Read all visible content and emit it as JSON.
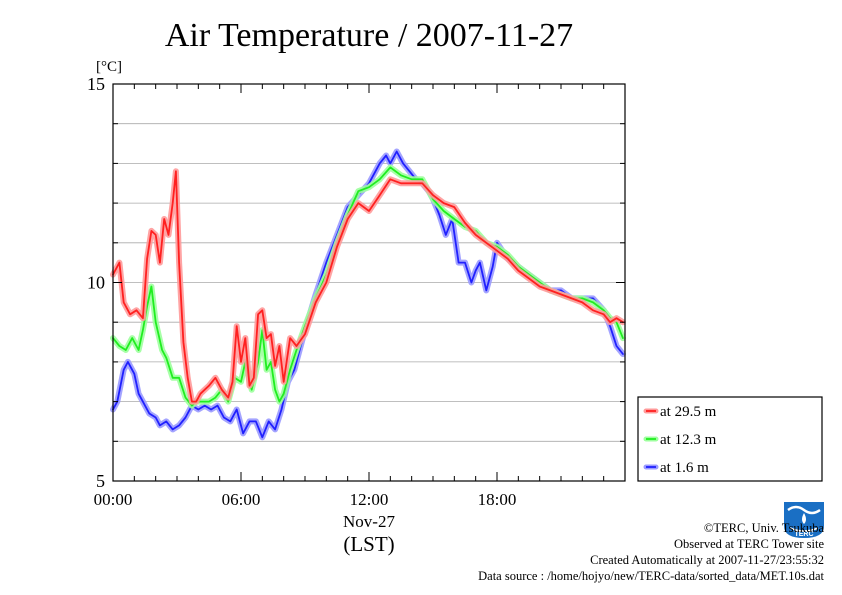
{
  "chart_data": {
    "type": "line",
    "title": "Air Temperature / 2007-11-27",
    "ylabel": "[°C]",
    "xlabel": "(LST)",
    "x_date_label": "Nov-27",
    "xlim": [
      0,
      24
    ],
    "ylim": [
      5,
      15
    ],
    "grid": true,
    "legend_position": "right-bottom-outside",
    "x_ticks": [
      {
        "x": 0,
        "label": "00:00"
      },
      {
        "x": 6,
        "label": "06:00"
      },
      {
        "x": 12,
        "label": "12:00"
      },
      {
        "x": 18,
        "label": "18:00"
      }
    ],
    "y_ticks": [
      {
        "y": 5,
        "label": "5"
      },
      {
        "y": 10,
        "label": "10"
      },
      {
        "y": 15,
        "label": "15"
      }
    ],
    "series": [
      {
        "name": "at 29.5 m",
        "color": "#ff2020",
        "glow": "#ff9a9a",
        "x": [
          0,
          0.3,
          0.5,
          0.8,
          1.1,
          1.4,
          1.6,
          1.8,
          2.0,
          2.2,
          2.4,
          2.6,
          2.8,
          2.95,
          3.1,
          3.3,
          3.5,
          3.7,
          3.9,
          4.1,
          4.3,
          4.5,
          4.8,
          5.1,
          5.4,
          5.6,
          5.8,
          6.0,
          6.2,
          6.4,
          6.6,
          6.8,
          7.0,
          7.2,
          7.4,
          7.6,
          7.8,
          8.0,
          8.3,
          8.6,
          9.0,
          9.5,
          10.0,
          10.5,
          11.0,
          11.5,
          12.0,
          12.5,
          13.0,
          13.5,
          14.0,
          14.5,
          15.0,
          15.5,
          16.0,
          16.5,
          17.0,
          17.5,
          18.0,
          18.5,
          19.0,
          19.5,
          20.0,
          20.5,
          21.0,
          21.5,
          22.0,
          22.5,
          23.0,
          23.3,
          23.6,
          23.9
        ],
        "values": [
          10.2,
          10.5,
          9.5,
          9.2,
          9.3,
          9.1,
          10.6,
          11.3,
          11.2,
          10.5,
          11.6,
          11.2,
          12.0,
          12.8,
          10.5,
          8.5,
          7.6,
          7.0,
          7.0,
          7.2,
          7.3,
          7.4,
          7.6,
          7.3,
          7.1,
          7.5,
          8.9,
          8.0,
          8.6,
          7.4,
          7.6,
          9.2,
          9.3,
          8.6,
          8.7,
          7.9,
          8.4,
          7.5,
          8.6,
          8.4,
          8.7,
          9.5,
          10.0,
          10.9,
          11.6,
          12.0,
          11.8,
          12.2,
          12.6,
          12.5,
          12.5,
          12.5,
          12.2,
          12.0,
          11.9,
          11.5,
          11.2,
          11.0,
          10.8,
          10.6,
          10.3,
          10.1,
          9.9,
          9.8,
          9.7,
          9.6,
          9.5,
          9.3,
          9.2,
          9.0,
          9.1,
          9.0
        ]
      },
      {
        "name": "at 12.3 m",
        "color": "#20ee20",
        "glow": "#9dff9d",
        "x": [
          0,
          0.3,
          0.6,
          0.9,
          1.2,
          1.4,
          1.6,
          1.8,
          2.0,
          2.3,
          2.5,
          2.8,
          3.1,
          3.4,
          3.7,
          3.9,
          4.2,
          4.5,
          4.8,
          5.1,
          5.4,
          5.7,
          6.0,
          6.2,
          6.5,
          6.8,
          7.0,
          7.2,
          7.4,
          7.6,
          7.8,
          8.0,
          8.3,
          8.6,
          9.0,
          9.5,
          10.0,
          10.5,
          11.0,
          11.5,
          12.0,
          12.5,
          13.0,
          13.5,
          14.0,
          14.5,
          15.0,
          15.5,
          16.0,
          16.5,
          17.0,
          17.5,
          18.0,
          18.5,
          19.0,
          19.5,
          20.0,
          20.5,
          21.0,
          21.5,
          22.0,
          22.5,
          23.0,
          23.3,
          23.6,
          23.9
        ],
        "values": [
          8.6,
          8.4,
          8.3,
          8.6,
          8.3,
          8.8,
          9.4,
          9.9,
          9.0,
          8.3,
          8.1,
          7.6,
          7.6,
          7.1,
          6.9,
          7.0,
          7.0,
          7.0,
          7.1,
          7.3,
          7.0,
          7.6,
          7.5,
          8.0,
          7.3,
          8.0,
          8.8,
          7.8,
          8.0,
          7.3,
          7.0,
          7.2,
          7.8,
          8.3,
          8.9,
          9.6,
          10.2,
          11.0,
          11.7,
          12.3,
          12.4,
          12.6,
          12.9,
          12.7,
          12.6,
          12.6,
          12.1,
          11.8,
          11.6,
          11.4,
          11.3,
          11.0,
          10.9,
          10.7,
          10.4,
          10.2,
          10.0,
          9.8,
          9.7,
          9.6,
          9.6,
          9.5,
          9.3,
          9.1,
          9.0,
          8.6
        ]
      },
      {
        "name": "at 1.6 m",
        "color": "#2020ff",
        "glow": "#9a9aff",
        "x": [
          0,
          0.2,
          0.5,
          0.7,
          1.0,
          1.2,
          1.5,
          1.7,
          2.0,
          2.2,
          2.5,
          2.8,
          3.1,
          3.4,
          3.7,
          4.0,
          4.3,
          4.6,
          4.9,
          5.2,
          5.5,
          5.8,
          6.1,
          6.4,
          6.7,
          7.0,
          7.3,
          7.6,
          7.9,
          8.2,
          8.5,
          9.0,
          9.5,
          10.0,
          10.5,
          11.0,
          11.5,
          12.0,
          12.5,
          12.8,
          13.0,
          13.3,
          13.6,
          13.9,
          14.2,
          14.5,
          14.8,
          15.0,
          15.3,
          15.6,
          15.9,
          16.2,
          16.5,
          16.8,
          17.0,
          17.2,
          17.5,
          17.8,
          18.0,
          18.5,
          19.0,
          19.5,
          20.0,
          20.5,
          21.0,
          21.5,
          22.0,
          22.5,
          23.0,
          23.3,
          23.6,
          23.9
        ],
        "values": [
          6.8,
          7.0,
          7.8,
          8.0,
          7.7,
          7.2,
          6.9,
          6.7,
          6.6,
          6.4,
          6.5,
          6.3,
          6.4,
          6.6,
          6.9,
          6.8,
          6.9,
          6.8,
          6.9,
          6.6,
          6.5,
          6.8,
          6.2,
          6.5,
          6.5,
          6.1,
          6.5,
          6.3,
          6.8,
          7.5,
          7.8,
          8.8,
          9.7,
          10.5,
          11.2,
          11.9,
          12.2,
          12.5,
          13.0,
          13.2,
          13.0,
          13.3,
          13.0,
          12.8,
          12.6,
          12.5,
          12.3,
          12.1,
          11.7,
          11.2,
          11.6,
          10.5,
          10.5,
          10.0,
          10.3,
          10.5,
          9.8,
          10.4,
          11.0,
          10.6,
          10.4,
          10.2,
          10.0,
          9.8,
          9.8,
          9.6,
          9.6,
          9.6,
          9.3,
          8.9,
          8.4,
          8.2
        ]
      }
    ]
  },
  "footer": {
    "copyright": "©TERC, Univ. Tsukuba",
    "observed": "Observed at TERC Tower site",
    "created": "Created Automatically at 2007-11-27/23:55:32",
    "source": "Data source : /home/hojyo/new/TERC-data/sorted_data/MET.10s.dat",
    "logo_text": "TERC"
  }
}
